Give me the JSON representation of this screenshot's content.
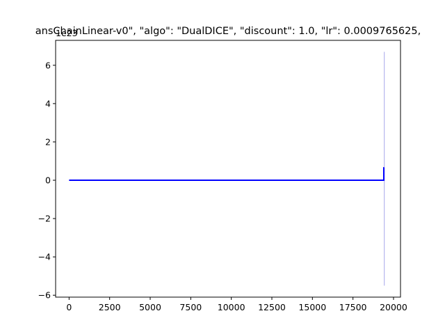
{
  "chart_data": {
    "type": "line",
    "title": "ansChainLinear-v0\", \"algo\": \"DualDICE\", \"discount\": 1.0, \"lr\": 0.0009765625,",
    "xlabel": "",
    "ylabel": "",
    "y_offset_text": "1e23",
    "xlim": [
      -830,
      20430
    ],
    "ylim": [
      -6.1,
      7.3
    ],
    "x_ticks": [
      0,
      2500,
      5000,
      7500,
      10000,
      12500,
      15000,
      17500,
      20000
    ],
    "x_tick_labels": [
      "0",
      "2500",
      "5000",
      "7500",
      "10000",
      "12500",
      "15000",
      "17500",
      "20000"
    ],
    "y_ticks": [
      -6,
      -4,
      -2,
      0,
      2,
      4,
      6
    ],
    "y_tick_labels": [
      "−6",
      "−4",
      "−2",
      "0",
      "2",
      "4",
      "6"
    ],
    "grid": false,
    "colors": {
      "mean_line": "#0000ff",
      "band": "#b6b6ee"
    },
    "series": [
      {
        "role": "mean",
        "x": [
          0,
          19400,
          19400,
          19430
        ],
        "y": [
          0.0,
          0.0,
          0.65,
          0.65
        ]
      }
    ],
    "band": {
      "x": [
        19430,
        19430
      ],
      "y_lower": [
        -5.5,
        -5.5
      ],
      "y_upper": [
        6.7,
        6.7
      ]
    }
  }
}
